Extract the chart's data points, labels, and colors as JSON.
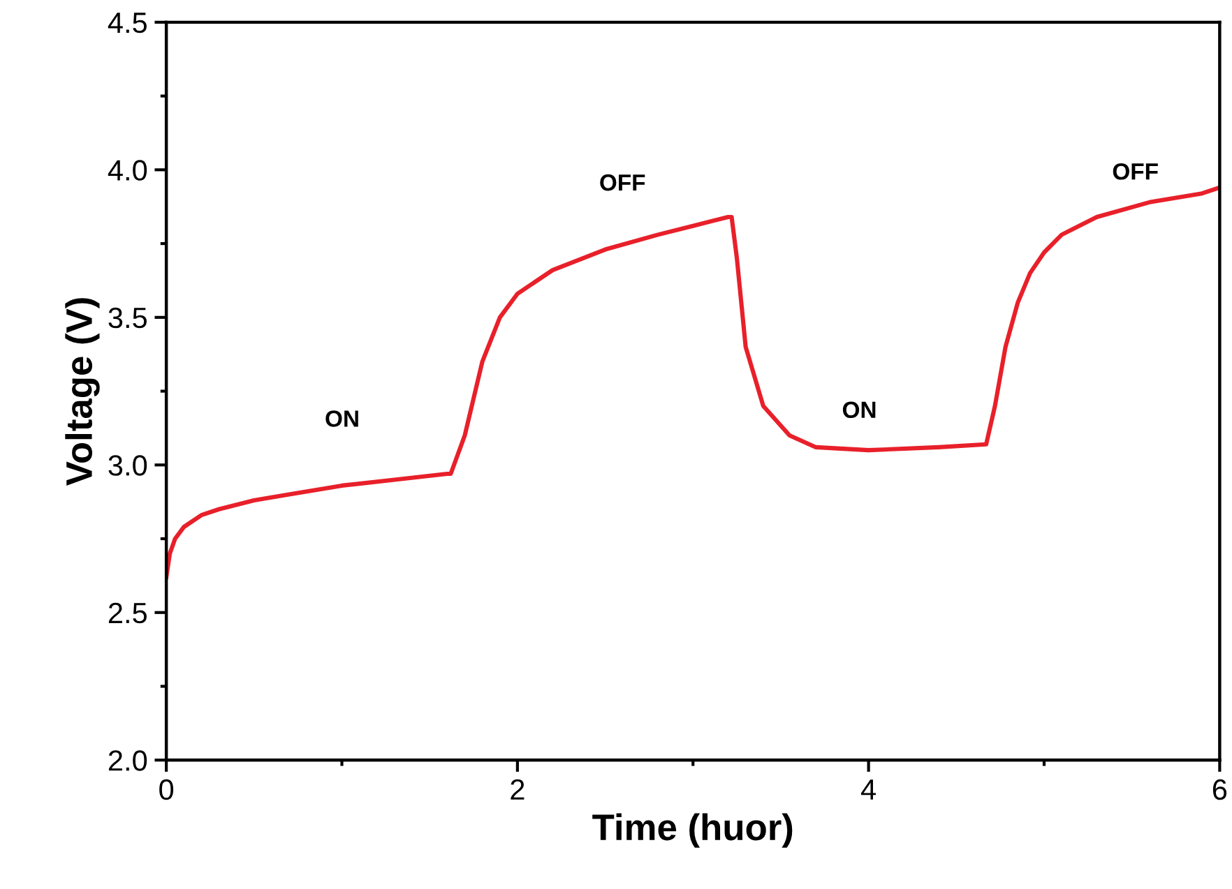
{
  "chart_data": {
    "type": "line",
    "xlabel": "Time (huor)",
    "ylabel": "Voltage (V)",
    "xlim": [
      0,
      6
    ],
    "xticks": [
      0,
      2,
      4,
      6
    ],
    "ylim": [
      2.0,
      4.5
    ],
    "yticks": [
      {
        "value": 2.0,
        "label": "2.0"
      },
      {
        "value": 2.5,
        "label": "2.5"
      },
      {
        "value": 3.0,
        "label": "3.0"
      },
      {
        "value": 3.5,
        "label": "3.5"
      },
      {
        "value": 4.0,
        "label": "4.0"
      },
      {
        "value": 4.5,
        "label": "4.5"
      }
    ],
    "grid": false,
    "legend": false,
    "marker": "none",
    "line_style": "solid",
    "series": [
      {
        "color": "#e8202a",
        "x": [
          0,
          0.02,
          0.05,
          0.1,
          0.2,
          0.3,
          0.5,
          0.7,
          1.0,
          1.3,
          1.6,
          1.62,
          1.7,
          1.8,
          1.9,
          2.0,
          2.2,
          2.5,
          2.8,
          3.0,
          3.2,
          3.22,
          3.25,
          3.3,
          3.4,
          3.55,
          3.7,
          4.0,
          4.4,
          4.67,
          4.72,
          4.78,
          4.85,
          4.92,
          5.0,
          5.1,
          5.3,
          5.6,
          5.9,
          6.0
        ],
        "values": [
          2.62,
          2.7,
          2.75,
          2.79,
          2.83,
          2.85,
          2.88,
          2.9,
          2.93,
          2.95,
          2.97,
          2.97,
          3.1,
          3.35,
          3.5,
          3.58,
          3.66,
          3.73,
          3.78,
          3.81,
          3.84,
          3.84,
          3.7,
          3.4,
          3.2,
          3.1,
          3.06,
          3.05,
          3.06,
          3.07,
          3.2,
          3.4,
          3.55,
          3.65,
          3.72,
          3.78,
          3.84,
          3.89,
          3.92,
          3.94
        ]
      }
    ],
    "annotations": [
      "ON",
      "OFF",
      "ON",
      "OFF"
    ]
  }
}
